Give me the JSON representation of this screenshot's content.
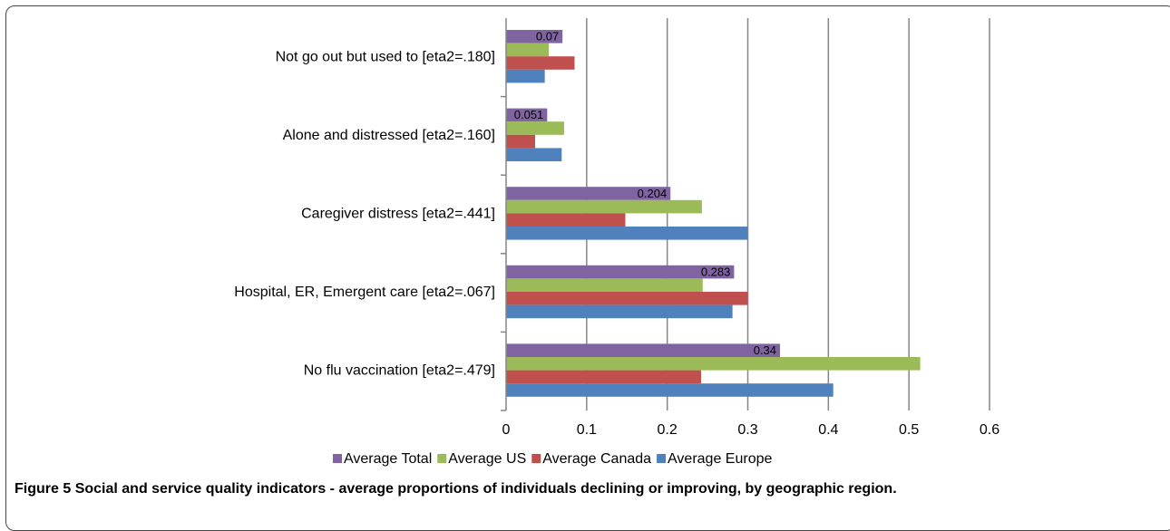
{
  "chart_data": {
    "type": "bar",
    "orientation": "horizontal",
    "categories": [
      "Not go out but used to [eta2=.180]",
      "Alone and distressed [eta2=.160]",
      "Caregiver distress  [eta2=.441]",
      "Hospital, ER, Emergent care [eta2=.067]",
      "No flu vaccination [eta2=.479]"
    ],
    "series": [
      {
        "name": "Average Total",
        "color": "#8064A2",
        "values": [
          0.07,
          0.051,
          0.204,
          0.283,
          0.34
        ],
        "labels": [
          "0.07",
          "0.051",
          "0.204",
          "0.283",
          "0.34"
        ]
      },
      {
        "name": "Average US",
        "color": "#9BBB59",
        "values": [
          0.053,
          0.072,
          0.243,
          0.244,
          0.514
        ]
      },
      {
        "name": "Average  Canada",
        "color": "#C0504D",
        "values": [
          0.085,
          0.036,
          0.148,
          0.3,
          0.242
        ]
      },
      {
        "name": "Average Europe",
        "color": "#4F81BD",
        "values": [
          0.048,
          0.069,
          0.3,
          0.281,
          0.406
        ]
      }
    ],
    "xlim": [
      0,
      0.6
    ],
    "xticks": [
      "0",
      "0.1",
      "0.2",
      "0.3",
      "0.4",
      "0.5",
      "0.6"
    ],
    "grid": true,
    "legend_position": "bottom"
  },
  "caption": {
    "figure_label": "Figure 5",
    "text": "Social and service quality indicators - average proportions of individuals declining or improving, by geographic region."
  }
}
